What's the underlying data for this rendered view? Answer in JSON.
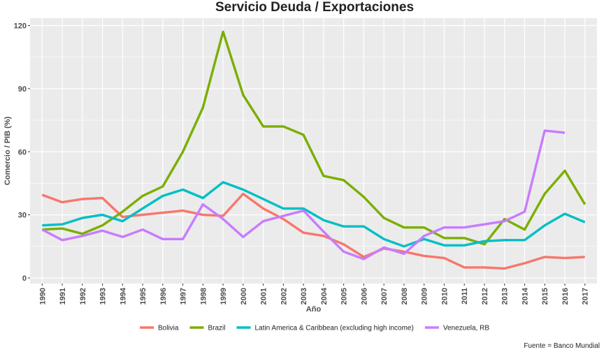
{
  "chart_data": {
    "type": "line",
    "title": "Servicio Deuda / Exportaciones",
    "xlabel": "Año",
    "ylabel": "Comercio / PIB (%)",
    "caption": "Fuente = Banco Mundial",
    "x": [
      1990,
      1991,
      1992,
      1993,
      1994,
      1995,
      1996,
      1997,
      1998,
      1999,
      2000,
      2001,
      2002,
      2003,
      2004,
      2005,
      2006,
      2007,
      2008,
      2009,
      2010,
      2011,
      2012,
      2013,
      2014,
      2015,
      2016,
      2017
    ],
    "ylim": [
      0,
      125
    ],
    "yticks": [
      0,
      30,
      60,
      90,
      120
    ],
    "grid": true,
    "legend_position": "bottom",
    "series": [
      {
        "name": "Bolivia",
        "color": "#F8766D",
        "values": [
          39.5,
          36,
          37.5,
          38,
          29,
          30,
          31,
          32,
          30,
          29.5,
          40,
          33,
          28,
          21.5,
          20,
          16,
          10,
          14,
          12.5,
          10.5,
          9.5,
          5,
          5,
          4.5,
          7,
          10,
          9.5,
          10
        ]
      },
      {
        "name": "Brazil",
        "color": "#7CAE00",
        "values": [
          23,
          23.5,
          21,
          25,
          31.5,
          39,
          43.5,
          60,
          81,
          117,
          87,
          72,
          72,
          68,
          48.5,
          46.5,
          38.5,
          28.5,
          24,
          24,
          19,
          19,
          16,
          28,
          23,
          40,
          51,
          35
        ]
      },
      {
        "name": "Latin America & Caribbean (excluding high income)",
        "color": "#00BFC4",
        "values": [
          25,
          25.5,
          28.5,
          30,
          27,
          33,
          39,
          42,
          38,
          45.5,
          42,
          37.5,
          33,
          33,
          27.5,
          24.5,
          24.5,
          18.5,
          15,
          18.5,
          15.5,
          15.5,
          17.5,
          18,
          18,
          25,
          30.5,
          26.5
        ]
      },
      {
        "name": "Venezuela, RB",
        "color": "#C77CFF",
        "values": [
          23,
          18,
          20,
          22.5,
          19.5,
          23,
          18.5,
          18.5,
          35,
          28,
          19.5,
          27,
          29.5,
          32,
          22,
          12.5,
          9,
          14.5,
          11.5,
          20,
          24,
          24,
          25.5,
          27,
          31.5,
          70,
          69,
          null
        ]
      }
    ]
  }
}
